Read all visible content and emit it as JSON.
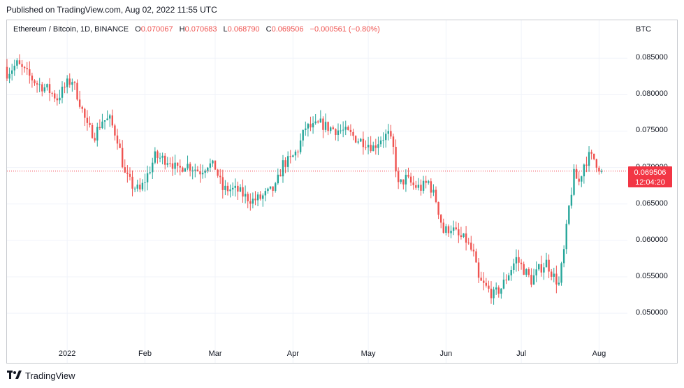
{
  "published": "Published on TradingView.com, Aug 02, 2022 11:55 UTC",
  "legend": {
    "symbol": "Ethereum / Bitcoin, 1D, BINANCE",
    "o_label": "O",
    "o_value": "0.070067",
    "h_label": "H",
    "h_value": "0.070683",
    "l_label": "L",
    "l_value": "0.068790",
    "c_label": "C",
    "c_value": "0.069506",
    "change": "−0.000561 (−0.80%)"
  },
  "currency": "BTC",
  "last_price": {
    "value": "0.069506",
    "countdown": "12:04:20"
  },
  "footer": {
    "brand": "TradingView",
    "logo_icon": "tradingview-logo-icon"
  },
  "colors": {
    "up": "#26a69a",
    "down": "#ef5350",
    "last_line": "#f23645",
    "grid": "#f0f3fa"
  },
  "chart_data": {
    "type": "candlestick",
    "y_ticks": [
      "0.085000",
      "0.080000",
      "0.075000",
      "0.070000",
      "0.065000",
      "0.060000",
      "0.055000",
      "0.050000"
    ],
    "x_ticks": [
      "2022",
      "Feb",
      "Mar",
      "Apr",
      "May",
      "Jun",
      "Jul",
      "Aug"
    ],
    "ylim": [
      0.0432,
      0.0902
    ],
    "grid": true,
    "last_close": 0.069506,
    "closes_by_date": [
      [
        "2021-12-08",
        0.083
      ],
      [
        "2021-12-12",
        0.0842
      ],
      [
        "2021-12-16",
        0.0828
      ],
      [
        "2021-12-20",
        0.0815
      ],
      [
        "2021-12-24",
        0.0808
      ],
      [
        "2021-12-28",
        0.0795
      ],
      [
        "2022-01-01",
        0.0815
      ],
      [
        "2022-01-03",
        0.082
      ],
      [
        "2022-01-06",
        0.079
      ],
      [
        "2022-01-09",
        0.0755
      ],
      [
        "2022-01-12",
        0.0745
      ],
      [
        "2022-01-15",
        0.0765
      ],
      [
        "2022-01-18",
        0.0765
      ],
      [
        "2022-01-21",
        0.074
      ],
      [
        "2022-01-24",
        0.069
      ],
      [
        "2022-01-27",
        0.0675
      ],
      [
        "2022-01-30",
        0.0668
      ],
      [
        "2022-02-02",
        0.069
      ],
      [
        "2022-02-05",
        0.0715
      ],
      [
        "2022-02-08",
        0.0712
      ],
      [
        "2022-02-11",
        0.071
      ],
      [
        "2022-02-14",
        0.0695
      ],
      [
        "2022-02-17",
        0.0705
      ],
      [
        "2022-02-20",
        0.07
      ],
      [
        "2022-02-23",
        0.0695
      ],
      [
        "2022-02-26",
        0.0705
      ],
      [
        "2022-03-01",
        0.07
      ],
      [
        "2022-03-04",
        0.067
      ],
      [
        "2022-03-07",
        0.067
      ],
      [
        "2022-03-10",
        0.0668
      ],
      [
        "2022-03-13",
        0.066
      ],
      [
        "2022-03-16",
        0.0655
      ],
      [
        "2022-03-19",
        0.0658
      ],
      [
        "2022-03-22",
        0.0665
      ],
      [
        "2022-03-25",
        0.0672
      ],
      [
        "2022-03-28",
        0.0705
      ],
      [
        "2022-03-31",
        0.071
      ],
      [
        "2022-04-03",
        0.0725
      ],
      [
        "2022-04-06",
        0.0755
      ],
      [
        "2022-04-09",
        0.0755
      ],
      [
        "2022-04-12",
        0.076
      ],
      [
        "2022-04-15",
        0.0755
      ],
      [
        "2022-04-18",
        0.0752
      ],
      [
        "2022-04-21",
        0.075
      ],
      [
        "2022-04-24",
        0.0745
      ],
      [
        "2022-04-27",
        0.0738
      ],
      [
        "2022-04-30",
        0.0735
      ],
      [
        "2022-05-03",
        0.0728
      ],
      [
        "2022-05-06",
        0.074
      ],
      [
        "2022-05-09",
        0.0745
      ],
      [
        "2022-05-11",
        0.0725
      ],
      [
        "2022-05-13",
        0.0675
      ],
      [
        "2022-05-16",
        0.0685
      ],
      [
        "2022-05-19",
        0.0675
      ],
      [
        "2022-05-22",
        0.0672
      ],
      [
        "2022-05-25",
        0.068
      ],
      [
        "2022-05-28",
        0.0655
      ],
      [
        "2022-05-31",
        0.0612
      ],
      [
        "2022-06-03",
        0.0618
      ],
      [
        "2022-06-06",
        0.0605
      ],
      [
        "2022-06-09",
        0.06
      ],
      [
        "2022-06-12",
        0.058
      ],
      [
        "2022-06-14",
        0.0545
      ],
      [
        "2022-06-17",
        0.0535
      ],
      [
        "2022-06-20",
        0.0525
      ],
      [
        "2022-06-23",
        0.0535
      ],
      [
        "2022-06-26",
        0.0555
      ],
      [
        "2022-06-29",
        0.0575
      ],
      [
        "2022-07-02",
        0.056
      ],
      [
        "2022-07-05",
        0.0545
      ],
      [
        "2022-07-08",
        0.056
      ],
      [
        "2022-07-11",
        0.057
      ],
      [
        "2022-07-14",
        0.055
      ],
      [
        "2022-07-16",
        0.054
      ],
      [
        "2022-07-18",
        0.0585
      ],
      [
        "2022-07-20",
        0.0645
      ],
      [
        "2022-07-22",
        0.069
      ],
      [
        "2022-07-24",
        0.068
      ],
      [
        "2022-07-26",
        0.0705
      ],
      [
        "2022-07-28",
        0.0715
      ],
      [
        "2022-07-30",
        0.0712
      ],
      [
        "2022-08-02",
        0.0695
      ]
    ]
  }
}
